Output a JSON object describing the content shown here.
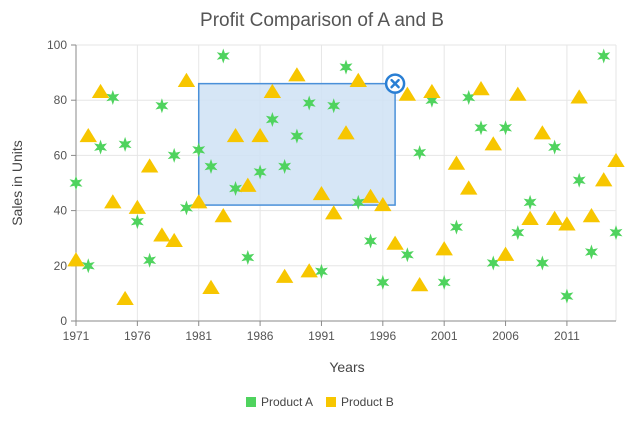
{
  "chart_data": {
    "type": "scatter",
    "title": "Profit Comparison of A and B",
    "xlabel": "Years",
    "ylabel": "Sales in Units",
    "xlim": [
      1971,
      2015
    ],
    "ylim": [
      0,
      100
    ],
    "x_ticks": [
      1971,
      1976,
      1981,
      1986,
      1991,
      1996,
      2001,
      2006,
      2011
    ],
    "y_ticks": [
      0,
      20,
      40,
      60,
      80,
      100
    ],
    "grid": true,
    "legend_position": "bottom",
    "series": [
      {
        "name": "Product A",
        "marker": "star",
        "color": "#4fd35e",
        "points": [
          [
            1971,
            50
          ],
          [
            1972,
            20
          ],
          [
            1973,
            63
          ],
          [
            1974,
            81
          ],
          [
            1975,
            64
          ],
          [
            1976,
            36
          ],
          [
            1977,
            22
          ],
          [
            1978,
            78
          ],
          [
            1979,
            60
          ],
          [
            1980,
            41
          ],
          [
            1981,
            62
          ],
          [
            1982,
            56
          ],
          [
            1983,
            96
          ],
          [
            1984,
            48
          ],
          [
            1985,
            23
          ],
          [
            1986,
            54
          ],
          [
            1987,
            73
          ],
          [
            1988,
            56
          ],
          [
            1989,
            67
          ],
          [
            1990,
            79
          ],
          [
            1991,
            18
          ],
          [
            1992,
            78
          ],
          [
            1993,
            92
          ],
          [
            1994,
            43
          ],
          [
            1995,
            29
          ],
          [
            1996,
            14
          ],
          [
            1998,
            24
          ],
          [
            1999,
            61
          ],
          [
            2000,
            80
          ],
          [
            2001,
            14
          ],
          [
            2002,
            34
          ],
          [
            2003,
            81
          ],
          [
            2004,
            70
          ],
          [
            2005,
            21
          ],
          [
            2006,
            70
          ],
          [
            2007,
            32
          ],
          [
            2008,
            43
          ],
          [
            2009,
            21
          ],
          [
            2010,
            63
          ],
          [
            2011,
            9
          ],
          [
            2012,
            51
          ],
          [
            2013,
            25
          ],
          [
            2014,
            96
          ],
          [
            2015,
            32
          ]
        ]
      },
      {
        "name": "Product B",
        "marker": "triangle",
        "color": "#f7c600",
        "points": [
          [
            1971,
            22
          ],
          [
            1972,
            67
          ],
          [
            1973,
            83
          ],
          [
            1974,
            43
          ],
          [
            1975,
            8
          ],
          [
            1976,
            41
          ],
          [
            1977,
            56
          ],
          [
            1978,
            31
          ],
          [
            1979,
            29
          ],
          [
            1980,
            87
          ],
          [
            1981,
            43
          ],
          [
            1982,
            12
          ],
          [
            1983,
            38
          ],
          [
            1984,
            67
          ],
          [
            1985,
            49
          ],
          [
            1986,
            67
          ],
          [
            1987,
            83
          ],
          [
            1988,
            16
          ],
          [
            1989,
            89
          ],
          [
            1990,
            18
          ],
          [
            1991,
            46
          ],
          [
            1992,
            39
          ],
          [
            1993,
            68
          ],
          [
            1994,
            87
          ],
          [
            1995,
            45
          ],
          [
            1996,
            42
          ],
          [
            1997,
            28
          ],
          [
            1998,
            82
          ],
          [
            1999,
            13
          ],
          [
            2000,
            83
          ],
          [
            2001,
            26
          ],
          [
            2002,
            57
          ],
          [
            2003,
            48
          ],
          [
            2004,
            84
          ],
          [
            2005,
            64
          ],
          [
            2006,
            24
          ],
          [
            2007,
            82
          ],
          [
            2008,
            37
          ],
          [
            2009,
            68
          ],
          [
            2010,
            37
          ],
          [
            2011,
            35
          ],
          [
            2012,
            81
          ],
          [
            2013,
            38
          ],
          [
            2014,
            51
          ],
          [
            2015,
            58
          ]
        ]
      }
    ],
    "selection": {
      "x_range": [
        1981,
        1997
      ],
      "y_range": [
        42,
        86
      ]
    }
  },
  "colors": {
    "grid": "#e6e6e6",
    "axis": "#8a8a8a",
    "selection_fill": "#cfe2f5",
    "selection_stroke": "#4a90d9",
    "close_button": "#2a7fd4"
  },
  "icons": {
    "selection_close": "close-circle-icon"
  }
}
